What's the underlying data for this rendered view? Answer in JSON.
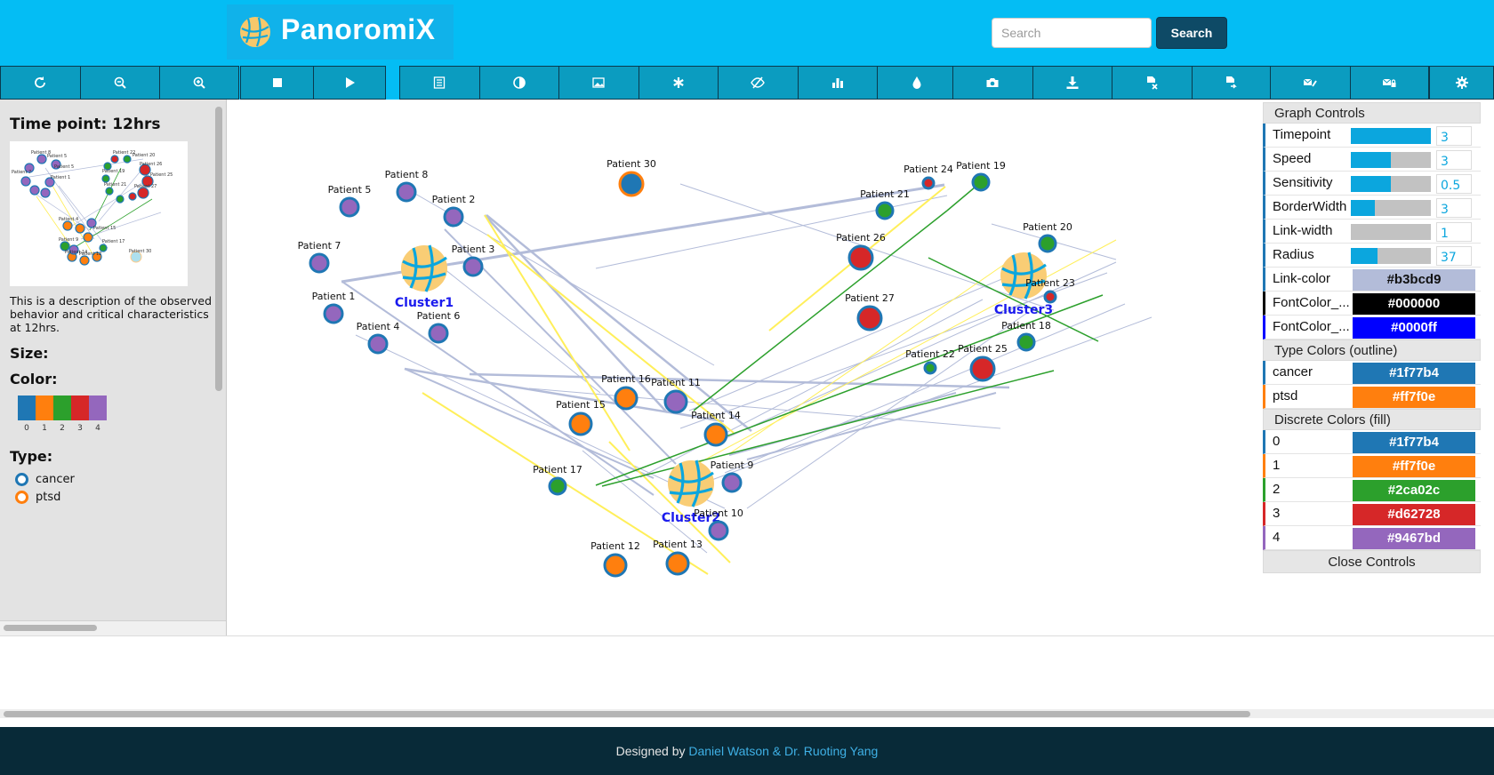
{
  "header": {
    "app_name": "PanoromiX",
    "search_placeholder": "Search",
    "search_button": "Search"
  },
  "toolbar": {
    "groups": [
      [
        "refresh-icon",
        "zoom-out-icon",
        "zoom-in-icon"
      ],
      [
        "stop-icon",
        "play-icon"
      ],
      [
        "list-icon",
        "contrast-icon",
        "image-icon",
        "asterisk-icon",
        "eye-slash-icon",
        "bar-chart-icon",
        "tint-icon"
      ],
      [
        "camera-icon",
        "download-icon",
        "file-remove-icon",
        "file-export-icon"
      ],
      [
        "envelope-edit-icon",
        "envelope-lock-icon"
      ],
      [
        "gear-icon"
      ]
    ]
  },
  "left_panel": {
    "title": "Time point: 12hrs",
    "description": "This is a description of the observed behavior and critical characteristics at 12hrs.",
    "size_label": "Size:",
    "color_label": "Color:",
    "color_swatches": [
      {
        "label": "0",
        "color": "#1f77b4"
      },
      {
        "label": "1",
        "color": "#ff7f0e"
      },
      {
        "label": "2",
        "color": "#2ca02c"
      },
      {
        "label": "3",
        "color": "#d62728"
      },
      {
        "label": "4",
        "color": "#9467bd"
      }
    ],
    "type_label": "Type:",
    "types": [
      {
        "label": "cancer",
        "color": "#1f77b4"
      },
      {
        "label": "ptsd",
        "color": "#ff7f0e"
      }
    ]
  },
  "graph": {
    "clusters": [
      "Cluster1",
      "Cluster2",
      "Cluster3"
    ],
    "nodes": [
      {
        "id": "p30",
        "label": "Patient 30",
        "fill": "#1f77b4",
        "outline": "#ff7f0e"
      },
      {
        "id": "p8",
        "label": "Patient 8",
        "fill": "#9467bd",
        "outline": "#1f77b4"
      },
      {
        "id": "p5",
        "label": "Patient 5",
        "fill": "#9467bd",
        "outline": "#1f77b4"
      },
      {
        "id": "p2",
        "label": "Patient 2",
        "fill": "#9467bd",
        "outline": "#1f77b4"
      },
      {
        "id": "p7",
        "label": "Patient 7",
        "fill": "#9467bd",
        "outline": "#1f77b4"
      },
      {
        "id": "p3",
        "label": "Patient 3",
        "fill": "#9467bd",
        "outline": "#1f77b4"
      },
      {
        "id": "p1",
        "label": "Patient 1",
        "fill": "#9467bd",
        "outline": "#1f77b4"
      },
      {
        "id": "p6",
        "label": "Patient 6",
        "fill": "#9467bd",
        "outline": "#1f77b4"
      },
      {
        "id": "p4",
        "label": "Patient 4",
        "fill": "#9467bd",
        "outline": "#1f77b4"
      },
      {
        "id": "p16",
        "label": "Patient 16",
        "fill": "#ff7f0e",
        "outline": "#1f77b4"
      },
      {
        "id": "p11",
        "label": "Patient 11",
        "fill": "#9467bd",
        "outline": "#1f77b4"
      },
      {
        "id": "p15",
        "label": "Patient 15",
        "fill": "#ff7f0e",
        "outline": "#1f77b4"
      },
      {
        "id": "p14",
        "label": "Patient 14",
        "fill": "#ff7f0e",
        "outline": "#1f77b4"
      },
      {
        "id": "p17",
        "label": "Patient 17",
        "fill": "#2ca02c",
        "outline": "#1f77b4"
      },
      {
        "id": "p9",
        "label": "Patient 9",
        "fill": "#9467bd",
        "outline": "#1f77b4"
      },
      {
        "id": "p10",
        "label": "Patient 10",
        "fill": "#9467bd",
        "outline": "#1f77b4"
      },
      {
        "id": "p12",
        "label": "Patient 12",
        "fill": "#ff7f0e",
        "outline": "#1f77b4"
      },
      {
        "id": "p13",
        "label": "Patient 13",
        "fill": "#ff7f0e",
        "outline": "#1f77b4"
      },
      {
        "id": "p24",
        "label": "Patient 24",
        "fill": "#d62728",
        "outline": "#1f77b4"
      },
      {
        "id": "p19",
        "label": "Patient 19",
        "fill": "#2ca02c",
        "outline": "#1f77b4"
      },
      {
        "id": "p21",
        "label": "Patient 21",
        "fill": "#2ca02c",
        "outline": "#1f77b4"
      },
      {
        "id": "p26",
        "label": "Patient 26",
        "fill": "#d62728",
        "outline": "#1f77b4"
      },
      {
        "id": "p20",
        "label": "Patient 20",
        "fill": "#2ca02c",
        "outline": "#1f77b4"
      },
      {
        "id": "p23",
        "label": "Patient 23",
        "fill": "#d62728",
        "outline": "#1f77b4"
      },
      {
        "id": "p27",
        "label": "Patient 27",
        "fill": "#d62728",
        "outline": "#1f77b4"
      },
      {
        "id": "p18",
        "label": "Patient 18",
        "fill": "#2ca02c",
        "outline": "#1f77b4"
      },
      {
        "id": "p22",
        "label": "Patient 22",
        "fill": "#2ca02c",
        "outline": "#1f77b4"
      },
      {
        "id": "p25",
        "label": "Patient 25",
        "fill": "#d62728",
        "outline": "#1f77b4"
      }
    ]
  },
  "controls": {
    "graph_controls_title": "Graph Controls",
    "sliders": [
      {
        "label": "Timepoint",
        "value": "3",
        "fill_fraction": 1.0
      },
      {
        "label": "Speed",
        "value": "3",
        "fill_fraction": 0.5
      },
      {
        "label": "Sensitivity",
        "value": "0.5",
        "fill_fraction": 0.5
      },
      {
        "label": "BorderWidth",
        "value": "3",
        "fill_fraction": 0.3
      },
      {
        "label": "Link-width",
        "value": "1",
        "fill_fraction": 0.0
      },
      {
        "label": "Radius",
        "value": "37",
        "fill_fraction": 0.33
      }
    ],
    "color_settings": [
      {
        "label": "Link-color",
        "value": "#b3bcd9",
        "swatch": "#b3bcd9",
        "text_color": "#111111",
        "accent": "#1f77b4"
      },
      {
        "label": "FontColor_...",
        "value": "#000000",
        "swatch": "#000000",
        "text_color": "#ffffff",
        "accent": "#000000"
      },
      {
        "label": "FontColor_...",
        "value": "#0000ff",
        "swatch": "#0000ff",
        "text_color": "#ffffff",
        "accent": "#0000ff"
      }
    ],
    "type_colors_title": "Type Colors (outline)",
    "type_colors": [
      {
        "label": "cancer",
        "value": "#1f77b4",
        "swatch": "#1f77b4",
        "accent": "#1f77b4"
      },
      {
        "label": "ptsd",
        "value": "#ff7f0e",
        "swatch": "#ff7f0e",
        "accent": "#ff7f0e"
      }
    ],
    "discrete_colors_title": "Discrete Colors (fill)",
    "discrete_colors": [
      {
        "label": "0",
        "value": "#1f77b4",
        "swatch": "#1f77b4",
        "accent": "#1f77b4"
      },
      {
        "label": "1",
        "value": "#ff7f0e",
        "swatch": "#ff7f0e",
        "accent": "#ff7f0e"
      },
      {
        "label": "2",
        "value": "#2ca02c",
        "swatch": "#2ca02c",
        "accent": "#2ca02c"
      },
      {
        "label": "3",
        "value": "#d62728",
        "swatch": "#d62728",
        "accent": "#d62728"
      },
      {
        "label": "4",
        "value": "#9467bd",
        "swatch": "#9467bd",
        "accent": "#9467bd"
      }
    ],
    "close_label": "Close Controls"
  },
  "footer": {
    "prefix": "Designed by",
    "authors": "Daniel Watson & Dr. Ruoting Yang"
  }
}
